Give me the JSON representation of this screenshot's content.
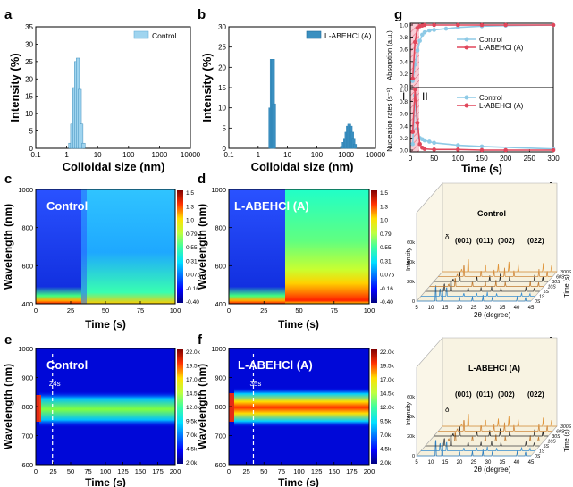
{
  "panels": {
    "a": "a",
    "b": "b",
    "c": "c",
    "d": "d",
    "e": "e",
    "f": "f",
    "g": "g",
    "h": "h",
    "i": "i"
  },
  "chart_data": [
    {
      "id": "a",
      "type": "bar",
      "xlabel": "Colloidal size (nm)",
      "ylabel": "Intensity (%)",
      "xscale": "log",
      "xlim": [
        0.1,
        10000
      ],
      "ylim": [
        0,
        35
      ],
      "xticks": [
        "0.1",
        "1",
        "10",
        "100",
        "1000",
        "10000"
      ],
      "yticks": [
        "0",
        "5",
        "10",
        "15",
        "20",
        "25",
        "30",
        "35"
      ],
      "legend": "Control",
      "color": "#9fd4ef",
      "x": [
        1.3,
        1.5,
        1.75,
        2.0,
        2.3,
        2.65,
        3.0,
        3.5
      ],
      "values": [
        1.5,
        7,
        17.5,
        25,
        26,
        17,
        7,
        1.5
      ]
    },
    {
      "id": "b",
      "type": "bar",
      "xlabel": "Colloidal size (nm)",
      "ylabel": "Intensity (%)",
      "xscale": "log",
      "xlim": [
        0.1,
        10000
      ],
      "ylim": [
        0,
        30
      ],
      "xticks": [
        "0.1",
        "1",
        "10",
        "100",
        "1000",
        "10000"
      ],
      "yticks": [
        "0",
        "5",
        "10",
        "15",
        "20",
        "25",
        "30"
      ],
      "legend": "L-ABEHCl (A)",
      "color": "#3a8fc0",
      "x": [
        2.6,
        2.9,
        3.2,
        3.5,
        720,
        820,
        920,
        1030,
        1150,
        1280,
        1430,
        1600,
        1790,
        2000
      ],
      "values": [
        10,
        22,
        22,
        11,
        0.5,
        1.5,
        2.5,
        4,
        5.5,
        6,
        5.5,
        4,
        2.5,
        1
      ]
    },
    {
      "id": "c",
      "type": "heatmap",
      "title": "Control",
      "xlabel": "Time (s)",
      "ylabel": "Wavelength (nm)",
      "xlim": [
        0,
        100
      ],
      "ylim": [
        400,
        1000
      ],
      "xticks": [
        "0",
        "25",
        "50",
        "75",
        "100"
      ],
      "yticks": [
        "400",
        "600",
        "800",
        "1000"
      ],
      "colorbar": [
        "1.5",
        "1.3",
        "1.0",
        "0.79",
        "0.55",
        "0.31",
        "0.075",
        "-0.16",
        "-0.40"
      ],
      "transition_time": 33
    },
    {
      "id": "d",
      "type": "heatmap",
      "title": "L-ABEHCl (A)",
      "xlabel": "Time (s)",
      "ylabel": "Wavelength (nm)",
      "xlim": [
        0,
        100
      ],
      "ylim": [
        400,
        1000
      ],
      "xticks": [
        "0",
        "25",
        "50",
        "75",
        "100"
      ],
      "yticks": [
        "400",
        "600",
        "800",
        "1000"
      ],
      "colorbar": [
        "1.5",
        "1.3",
        "1.0",
        "0.79",
        "0.55",
        "0.31",
        "0.075",
        "-0.16",
        "-0.40"
      ],
      "transition_time": 40
    },
    {
      "id": "e",
      "type": "heatmap",
      "title": "Control",
      "xlabel": "Time (s)",
      "ylabel": "Wavelength (nm)",
      "xlim": [
        0,
        200
      ],
      "ylim": [
        600,
        1000
      ],
      "xticks": [
        "0",
        "25",
        "50",
        "75",
        "100",
        "125",
        "150",
        "175",
        "200"
      ],
      "yticks": [
        "600",
        "700",
        "800",
        "900",
        "1000"
      ],
      "colorbar": [
        "22.0k",
        "19.5k",
        "17.0k",
        "14.5k",
        "12.0k",
        "9.5k",
        "7.0k",
        "4.5k",
        "2.0k"
      ],
      "marker_label": "24s",
      "marker_time": 24
    },
    {
      "id": "f",
      "type": "heatmap",
      "title": "L-ABEHCl (A)",
      "xlabel": "Time (s)",
      "ylabel": "Wavelength (nm)",
      "xlim": [
        0,
        200
      ],
      "ylim": [
        600,
        1000
      ],
      "xticks": [
        "0",
        "25",
        "50",
        "75",
        "100",
        "125",
        "150",
        "175",
        "200"
      ],
      "yticks": [
        "600",
        "700",
        "800",
        "900",
        "1000"
      ],
      "colorbar": [
        "22.0k",
        "19.5k",
        "17.0k",
        "14.5k",
        "12.0k",
        "9.5k",
        "7.0k",
        "4.5k",
        "2.0k"
      ],
      "marker_label": "35s",
      "marker_time": 35
    },
    {
      "id": "g",
      "type": "line",
      "xlabel": "Time (s)",
      "xlim": [
        0,
        300
      ],
      "xticks": [
        "0",
        "50",
        "100",
        "150",
        "200",
        "250",
        "300"
      ],
      "region_labels": [
        "I",
        "II"
      ],
      "top": {
        "ylabel": "Absorption (a.u.)",
        "ylim": [
          0,
          1.0
        ],
        "yticks": [
          "0.0",
          "0.2",
          "0.4",
          "0.6",
          "0.8",
          "1.0"
        ],
        "series": [
          {
            "name": "Control",
            "color": "#8ecae6",
            "x": [
              5,
              10,
              15,
              20,
              25,
              30,
              40,
              50,
              75,
              100,
              150,
              200,
              300
            ],
            "values": [
              0.08,
              0.35,
              0.58,
              0.74,
              0.84,
              0.88,
              0.91,
              0.92,
              0.94,
              0.96,
              0.98,
              0.99,
              1.0
            ]
          },
          {
            "name": "L-ABEHCl (A)",
            "color": "#e0475b",
            "x": [
              5,
              10,
              15,
              20,
              25,
              30,
              50,
              100,
              150,
              200,
              300
            ],
            "values": [
              0.12,
              0.72,
              0.95,
              0.98,
              0.99,
              1.0,
              1.0,
              1.0,
              1.0,
              1.0,
              1.0
            ]
          }
        ]
      },
      "bottom": {
        "ylabel": "Nucleation rates (s⁻¹)",
        "ylim": [
          0,
          1.0
        ],
        "yticks": [
          "0.0",
          "0.2",
          "0.4",
          "0.6",
          "0.8",
          "1.0"
        ],
        "series": [
          {
            "name": "Control",
            "color": "#8ecae6",
            "x": [
              5,
              10,
              15,
              20,
              25,
              30,
              40,
              50,
              100,
              150,
              300
            ],
            "values": [
              0.1,
              0.9,
              0.35,
              0.2,
              0.18,
              0.16,
              0.14,
              0.12,
              0.08,
              0.06,
              0.02
            ]
          },
          {
            "name": "L-ABEHCl (A)",
            "color": "#e0475b",
            "x": [
              5,
              10,
              15,
              20,
              25,
              30,
              50,
              100,
              150,
              200,
              300
            ],
            "values": [
              0.3,
              1.0,
              0.45,
              0.1,
              0.04,
              0.02,
              0.01,
              0.01,
              0.0,
              0.0,
              0.0
            ]
          }
        ]
      }
    },
    {
      "id": "h",
      "type": "line",
      "title": "Control",
      "xlabel": "2θ (degree)",
      "ylabel": "Intensity",
      "zlabel": "Time (s)",
      "xticks": [
        "5",
        "10",
        "15",
        "20",
        "25",
        "30",
        "35",
        "40",
        "45"
      ],
      "yticks": [
        "0",
        "20k",
        "40k",
        "60k"
      ],
      "times": [
        "0S",
        "1S",
        "5S",
        "10S",
        "30S",
        "60S",
        "300S"
      ],
      "peak_labels": [
        "δ",
        "(001)",
        "(011)",
        "(002)",
        "(022)"
      ]
    },
    {
      "id": "i",
      "type": "line",
      "title": "L-ABEHCl (A)",
      "xlabel": "2θ (degree)",
      "ylabel": "Intensity",
      "zlabel": "Time (s)",
      "xticks": [
        "5",
        "10",
        "15",
        "20",
        "25",
        "30",
        "35",
        "40",
        "45"
      ],
      "yticks": [
        "0",
        "20k",
        "40k",
        "60k"
      ],
      "times": [
        "0S",
        "1S",
        "5S",
        "10S",
        "30S",
        "60S",
        "300S"
      ],
      "peak_labels": [
        "δ",
        "(001)",
        "(011)",
        "(002)",
        "(022)"
      ]
    }
  ]
}
